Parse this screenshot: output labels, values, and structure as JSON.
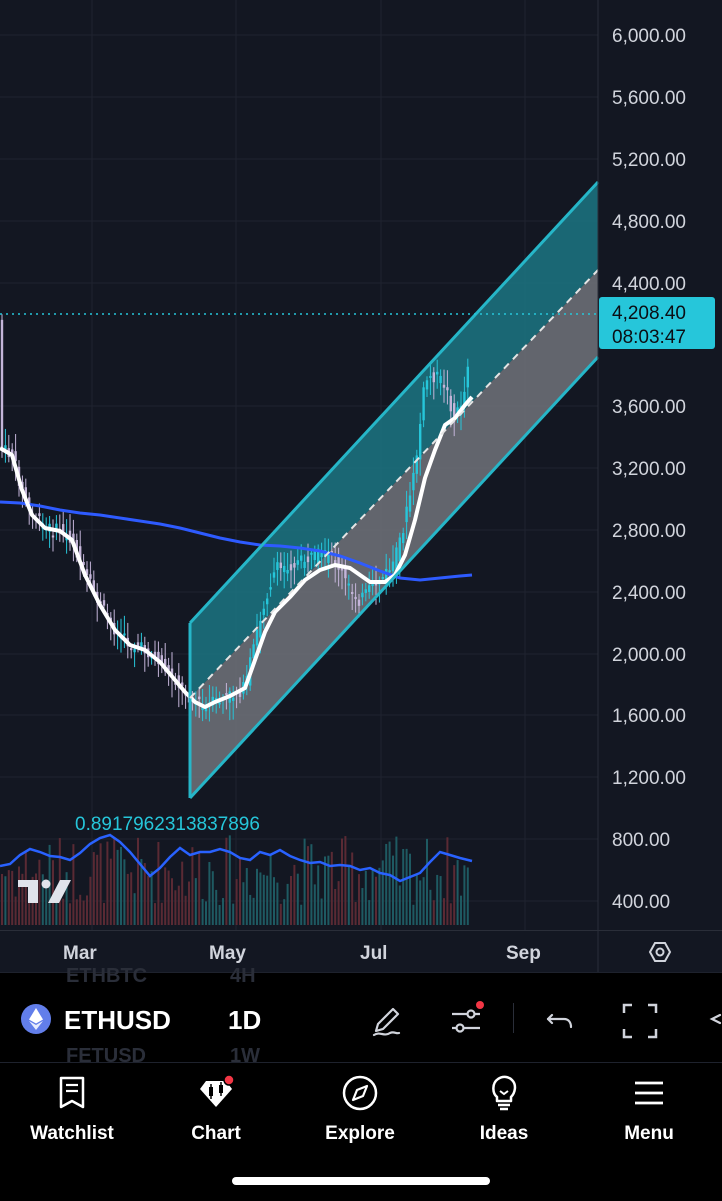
{
  "chart": {
    "symbol": "ETHUSD",
    "interval": "1D",
    "ghost_symbol_above": "ETHBTC",
    "ghost_interval_above": "4H",
    "ghost_symbol_below": "FETUSD",
    "ghost_interval_below": "1W",
    "price_label": "4,208.40",
    "countdown_label": "08:03:47",
    "indicator_value": "0.8917962313837896",
    "price_axis": [
      "6,000.00",
      "5,600.00",
      "5,200.00",
      "4,800.00",
      "4,400.00",
      "3,600.00",
      "3,200.00",
      "2,800.00",
      "2,400.00",
      "2,000.00",
      "1,600.00",
      "1,200.00",
      "800.00",
      "400.00"
    ],
    "time_axis": [
      "Mar",
      "May",
      "Jul",
      "Sep"
    ]
  },
  "colors": {
    "background": "#131722",
    "up_candle": "#26c6da",
    "down_candle": "#c4b5d9",
    "channel_line": "#26b6c8",
    "ma_white": "#ffffff",
    "ma_blue": "#2e5bff",
    "price_tag": "#26c6da"
  },
  "nav": {
    "watchlist": "Watchlist",
    "chart": "Chart",
    "explore": "Explore",
    "ideas": "Ideas",
    "menu": "Menu"
  },
  "icons": {
    "symbol_logo": "ethereum-icon",
    "drawing": "pencil-icon",
    "indicators": "sliders-icon",
    "undo": "undo-icon",
    "fullscreen": "fullscreen-icon",
    "settings": "settings-icon"
  }
}
